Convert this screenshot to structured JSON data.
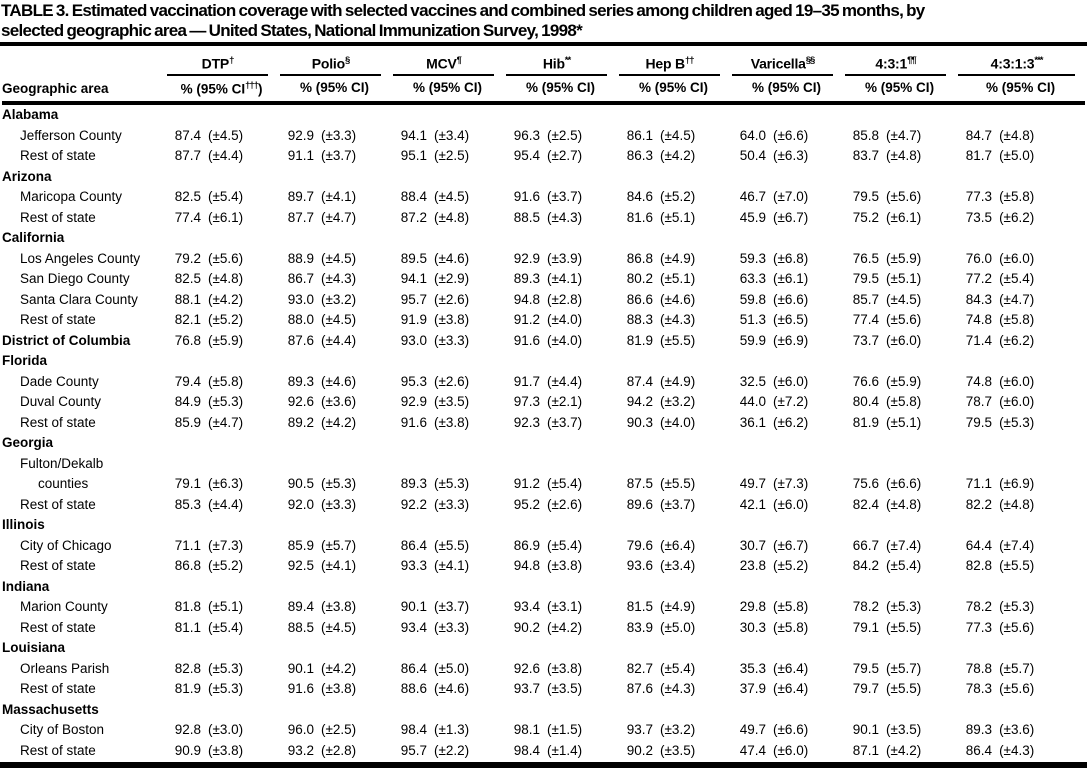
{
  "title": {
    "line1": "TABLE 3. Estimated vaccination coverage with selected vaccines and combined series among children aged 19–35 months, by",
    "line2": "selected geographic area — United States, National Immunization Survey, 1998*"
  },
  "table": {
    "geo_header": "Geographic area",
    "columns": [
      {
        "name": "DTP",
        "sup": "†",
        "ci_label": "% (95% CI",
        "ci_sup": "†††",
        "ci_close": ")"
      },
      {
        "name": "Polio",
        "sup": "§",
        "ci_label": "% (95% CI",
        "ci_sup": "",
        "ci_close": ")"
      },
      {
        "name": "MCV",
        "sup": "¶",
        "ci_label": "% (95% CI",
        "ci_sup": "",
        "ci_close": ")"
      },
      {
        "name": "Hib",
        "sup": "**",
        "ci_label": "% (95% CI",
        "ci_sup": "",
        "ci_close": ")"
      },
      {
        "name": "Hep B",
        "sup": "††",
        "ci_label": "% (95% CI",
        "ci_sup": "",
        "ci_close": ")"
      },
      {
        "name": "Varicella",
        "sup": "§§",
        "ci_label": "% (95% CI",
        "ci_sup": "",
        "ci_close": ")"
      },
      {
        "name": "4:3:1",
        "sup": "¶¶",
        "ci_label": "% (95% CI",
        "ci_sup": "",
        "ci_close": ")"
      },
      {
        "name": "4:3:1:3",
        "sup": "***",
        "ci_label": "% (95% CI",
        "ci_sup": "",
        "ci_close": ")"
      }
    ],
    "rows": [
      {
        "label": "Alabama",
        "type": "state",
        "cells": []
      },
      {
        "label": "Jefferson County",
        "type": "area",
        "cells": [
          [
            "87.4",
            "(±4.5)"
          ],
          [
            "92.9",
            "(±3.3)"
          ],
          [
            "94.1",
            "(±3.4)"
          ],
          [
            "96.3",
            "(±2.5)"
          ],
          [
            "86.1",
            "(±4.5)"
          ],
          [
            "64.0",
            "(±6.6)"
          ],
          [
            "85.8",
            "(±4.7)"
          ],
          [
            "84.7",
            "(±4.8)"
          ]
        ]
      },
      {
        "label": "Rest of state",
        "type": "area",
        "cells": [
          [
            "87.7",
            "(±4.4)"
          ],
          [
            "91.1",
            "(±3.7)"
          ],
          [
            "95.1",
            "(±2.5)"
          ],
          [
            "95.4",
            "(±2.7)"
          ],
          [
            "86.3",
            "(±4.2)"
          ],
          [
            "50.4",
            "(±6.3)"
          ],
          [
            "83.7",
            "(±4.8)"
          ],
          [
            "81.7",
            "(±5.0)"
          ]
        ]
      },
      {
        "label": "Arizona",
        "type": "state",
        "cells": []
      },
      {
        "label": "Maricopa County",
        "type": "area",
        "cells": [
          [
            "82.5",
            "(±5.4)"
          ],
          [
            "89.7",
            "(±4.1)"
          ],
          [
            "88.4",
            "(±4.5)"
          ],
          [
            "91.6",
            "(±3.7)"
          ],
          [
            "84.6",
            "(±5.2)"
          ],
          [
            "46.7",
            "(±7.0)"
          ],
          [
            "79.5",
            "(±5.6)"
          ],
          [
            "77.3",
            "(±5.8)"
          ]
        ]
      },
      {
        "label": "Rest of state",
        "type": "area",
        "cells": [
          [
            "77.4",
            "(±6.1)"
          ],
          [
            "87.7",
            "(±4.7)"
          ],
          [
            "87.2",
            "(±4.8)"
          ],
          [
            "88.5",
            "(±4.3)"
          ],
          [
            "81.6",
            "(±5.1)"
          ],
          [
            "45.9",
            "(±6.7)"
          ],
          [
            "75.2",
            "(±6.1)"
          ],
          [
            "73.5",
            "(±6.2)"
          ]
        ]
      },
      {
        "label": "California",
        "type": "state",
        "cells": []
      },
      {
        "label": "Los Angeles County",
        "type": "area",
        "cells": [
          [
            "79.2",
            "(±5.6)"
          ],
          [
            "88.9",
            "(±4.5)"
          ],
          [
            "89.5",
            "(±4.6)"
          ],
          [
            "92.9",
            "(±3.9)"
          ],
          [
            "86.8",
            "(±4.9)"
          ],
          [
            "59.3",
            "(±6.8)"
          ],
          [
            "76.5",
            "(±5.9)"
          ],
          [
            "76.0",
            "(±6.0)"
          ]
        ]
      },
      {
        "label": "San Diego County",
        "type": "area",
        "cells": [
          [
            "82.5",
            "(±4.8)"
          ],
          [
            "86.7",
            "(±4.3)"
          ],
          [
            "94.1",
            "(±2.9)"
          ],
          [
            "89.3",
            "(±4.1)"
          ],
          [
            "80.2",
            "(±5.1)"
          ],
          [
            "63.3",
            "(±6.1)"
          ],
          [
            "79.5",
            "(±5.1)"
          ],
          [
            "77.2",
            "(±5.4)"
          ]
        ]
      },
      {
        "label": "Santa Clara County",
        "type": "area",
        "cells": [
          [
            "88.1",
            "(±4.2)"
          ],
          [
            "93.0",
            "(±3.2)"
          ],
          [
            "95.7",
            "(±2.6)"
          ],
          [
            "94.8",
            "(±2.8)"
          ],
          [
            "86.6",
            "(±4.6)"
          ],
          [
            "59.8",
            "(±6.6)"
          ],
          [
            "85.7",
            "(±4.5)"
          ],
          [
            "84.3",
            "(±4.7)"
          ]
        ]
      },
      {
        "label": "Rest of state",
        "type": "area",
        "cells": [
          [
            "82.1",
            "(±5.2)"
          ],
          [
            "88.0",
            "(±4.5)"
          ],
          [
            "91.9",
            "(±3.8)"
          ],
          [
            "91.2",
            "(±4.0)"
          ],
          [
            "88.3",
            "(±4.3)"
          ],
          [
            "51.3",
            "(±6.5)"
          ],
          [
            "77.4",
            "(±5.6)"
          ],
          [
            "74.8",
            "(±5.8)"
          ]
        ]
      },
      {
        "label": "District of Columbia",
        "type": "state-data",
        "cells": [
          [
            "76.8",
            "(±5.9)"
          ],
          [
            "87.6",
            "(±4.4)"
          ],
          [
            "93.0",
            "(±3.3)"
          ],
          [
            "91.6",
            "(±4.0)"
          ],
          [
            "81.9",
            "(±5.5)"
          ],
          [
            "59.9",
            "(±6.9)"
          ],
          [
            "73.7",
            "(±6.0)"
          ],
          [
            "71.4",
            "(±6.2)"
          ]
        ]
      },
      {
        "label": "Florida",
        "type": "state",
        "cells": []
      },
      {
        "label": "Dade County",
        "type": "area",
        "cells": [
          [
            "79.4",
            "(±5.8)"
          ],
          [
            "89.3",
            "(±4.6)"
          ],
          [
            "95.3",
            "(±2.6)"
          ],
          [
            "91.7",
            "(±4.4)"
          ],
          [
            "87.4",
            "(±4.9)"
          ],
          [
            "32.5",
            "(±6.0)"
          ],
          [
            "76.6",
            "(±5.9)"
          ],
          [
            "74.8",
            "(±6.0)"
          ]
        ]
      },
      {
        "label": "Duval County",
        "type": "area",
        "cells": [
          [
            "84.9",
            "(±5.3)"
          ],
          [
            "92.6",
            "(±3.6)"
          ],
          [
            "92.9",
            "(±3.5)"
          ],
          [
            "97.3",
            "(±2.1)"
          ],
          [
            "94.2",
            "(±3.2)"
          ],
          [
            "44.0",
            "(±7.2)"
          ],
          [
            "80.4",
            "(±5.8)"
          ],
          [
            "78.7",
            "(±6.0)"
          ]
        ]
      },
      {
        "label": "Rest of state",
        "type": "area",
        "cells": [
          [
            "85.9",
            "(±4.7)"
          ],
          [
            "89.2",
            "(±4.2)"
          ],
          [
            "91.6",
            "(±3.8)"
          ],
          [
            "92.3",
            "(±3.7)"
          ],
          [
            "90.3",
            "(±4.0)"
          ],
          [
            "36.1",
            "(±6.2)"
          ],
          [
            "81.9",
            "(±5.1)"
          ],
          [
            "79.5",
            "(±5.3)"
          ]
        ]
      },
      {
        "label": "Georgia",
        "type": "state",
        "cells": []
      },
      {
        "label": "Fulton/Dekalb",
        "type": "area-label",
        "cells": []
      },
      {
        "label": "counties",
        "type": "area-sub",
        "cells": [
          [
            "79.1",
            "(±6.3)"
          ],
          [
            "90.5",
            "(±5.3)"
          ],
          [
            "89.3",
            "(±5.3)"
          ],
          [
            "91.2",
            "(±5.4)"
          ],
          [
            "87.5",
            "(±5.5)"
          ],
          [
            "49.7",
            "(±7.3)"
          ],
          [
            "75.6",
            "(±6.6)"
          ],
          [
            "71.1",
            "(±6.9)"
          ]
        ]
      },
      {
        "label": "Rest of state",
        "type": "area",
        "cells": [
          [
            "85.3",
            "(±4.4)"
          ],
          [
            "92.0",
            "(±3.3)"
          ],
          [
            "92.2",
            "(±3.3)"
          ],
          [
            "95.2",
            "(±2.6)"
          ],
          [
            "89.6",
            "(±3.7)"
          ],
          [
            "42.1",
            "(±6.0)"
          ],
          [
            "82.4",
            "(±4.8)"
          ],
          [
            "82.2",
            "(±4.8)"
          ]
        ]
      },
      {
        "label": "Illinois",
        "type": "state",
        "cells": []
      },
      {
        "label": "City of Chicago",
        "type": "area",
        "cells": [
          [
            "71.1",
            "(±7.3)"
          ],
          [
            "85.9",
            "(±5.7)"
          ],
          [
            "86.4",
            "(±5.5)"
          ],
          [
            "86.9",
            "(±5.4)"
          ],
          [
            "79.6",
            "(±6.4)"
          ],
          [
            "30.7",
            "(±6.7)"
          ],
          [
            "66.7",
            "(±7.4)"
          ],
          [
            "64.4",
            "(±7.4)"
          ]
        ]
      },
      {
        "label": "Rest of state",
        "type": "area",
        "cells": [
          [
            "86.8",
            "(±5.2)"
          ],
          [
            "92.5",
            "(±4.1)"
          ],
          [
            "93.3",
            "(±4.1)"
          ],
          [
            "94.8",
            "(±3.8)"
          ],
          [
            "93.6",
            "(±3.4)"
          ],
          [
            "23.8",
            "(±5.2)"
          ],
          [
            "84.2",
            "(±5.4)"
          ],
          [
            "82.8",
            "(±5.5)"
          ]
        ]
      },
      {
        "label": "Indiana",
        "type": "state",
        "cells": []
      },
      {
        "label": "Marion County",
        "type": "area",
        "cells": [
          [
            "81.8",
            "(±5.1)"
          ],
          [
            "89.4",
            "(±3.8)"
          ],
          [
            "90.1",
            "(±3.7)"
          ],
          [
            "93.4",
            "(±3.1)"
          ],
          [
            "81.5",
            "(±4.9)"
          ],
          [
            "29.8",
            "(±5.8)"
          ],
          [
            "78.2",
            "(±5.3)"
          ],
          [
            "78.2",
            "(±5.3)"
          ]
        ]
      },
      {
        "label": "Rest of state",
        "type": "area",
        "cells": [
          [
            "81.1",
            "(±5.4)"
          ],
          [
            "88.5",
            "(±4.5)"
          ],
          [
            "93.4",
            "(±3.3)"
          ],
          [
            "90.2",
            "(±4.2)"
          ],
          [
            "83.9",
            "(±5.0)"
          ],
          [
            "30.3",
            "(±5.8)"
          ],
          [
            "79.1",
            "(±5.5)"
          ],
          [
            "77.3",
            "(±5.6)"
          ]
        ]
      },
      {
        "label": "Louisiana",
        "type": "state",
        "cells": []
      },
      {
        "label": "Orleans Parish",
        "type": "area",
        "cells": [
          [
            "82.8",
            "(±5.3)"
          ],
          [
            "90.1",
            "(±4.2)"
          ],
          [
            "86.4",
            "(±5.0)"
          ],
          [
            "92.6",
            "(±3.8)"
          ],
          [
            "82.7",
            "(±5.4)"
          ],
          [
            "35.3",
            "(±6.4)"
          ],
          [
            "79.5",
            "(±5.7)"
          ],
          [
            "78.8",
            "(±5.7)"
          ]
        ]
      },
      {
        "label": "Rest of state",
        "type": "area",
        "cells": [
          [
            "81.9",
            "(±5.3)"
          ],
          [
            "91.6",
            "(±3.8)"
          ],
          [
            "88.6",
            "(±4.6)"
          ],
          [
            "93.7",
            "(±3.5)"
          ],
          [
            "87.6",
            "(±4.3)"
          ],
          [
            "37.9",
            "(±6.4)"
          ],
          [
            "79.7",
            "(±5.5)"
          ],
          [
            "78.3",
            "(±5.6)"
          ]
        ]
      },
      {
        "label": "Massachusetts",
        "type": "state",
        "cells": []
      },
      {
        "label": "City of Boston",
        "type": "area",
        "cells": [
          [
            "92.8",
            "(±3.0)"
          ],
          [
            "96.0",
            "(±2.5)"
          ],
          [
            "98.4",
            "(±1.3)"
          ],
          [
            "98.1",
            "(±1.5)"
          ],
          [
            "93.7",
            "(±3.2)"
          ],
          [
            "49.7",
            "(±6.6)"
          ],
          [
            "90.1",
            "(±3.5)"
          ],
          [
            "89.3",
            "(±3.6)"
          ]
        ]
      },
      {
        "label": "Rest of state",
        "type": "area",
        "cells": [
          [
            "90.9",
            "(±3.8)"
          ],
          [
            "93.2",
            "(±2.8)"
          ],
          [
            "95.7",
            "(±2.2)"
          ],
          [
            "98.4",
            "(±1.4)"
          ],
          [
            "90.2",
            "(±3.5)"
          ],
          [
            "47.4",
            "(±6.0)"
          ],
          [
            "87.1",
            "(±4.2)"
          ],
          [
            "86.4",
            "(±4.3)"
          ]
        ]
      }
    ]
  },
  "colors": {
    "text": "#000000",
    "background": "#ffffff",
    "rule": "#000000"
  }
}
